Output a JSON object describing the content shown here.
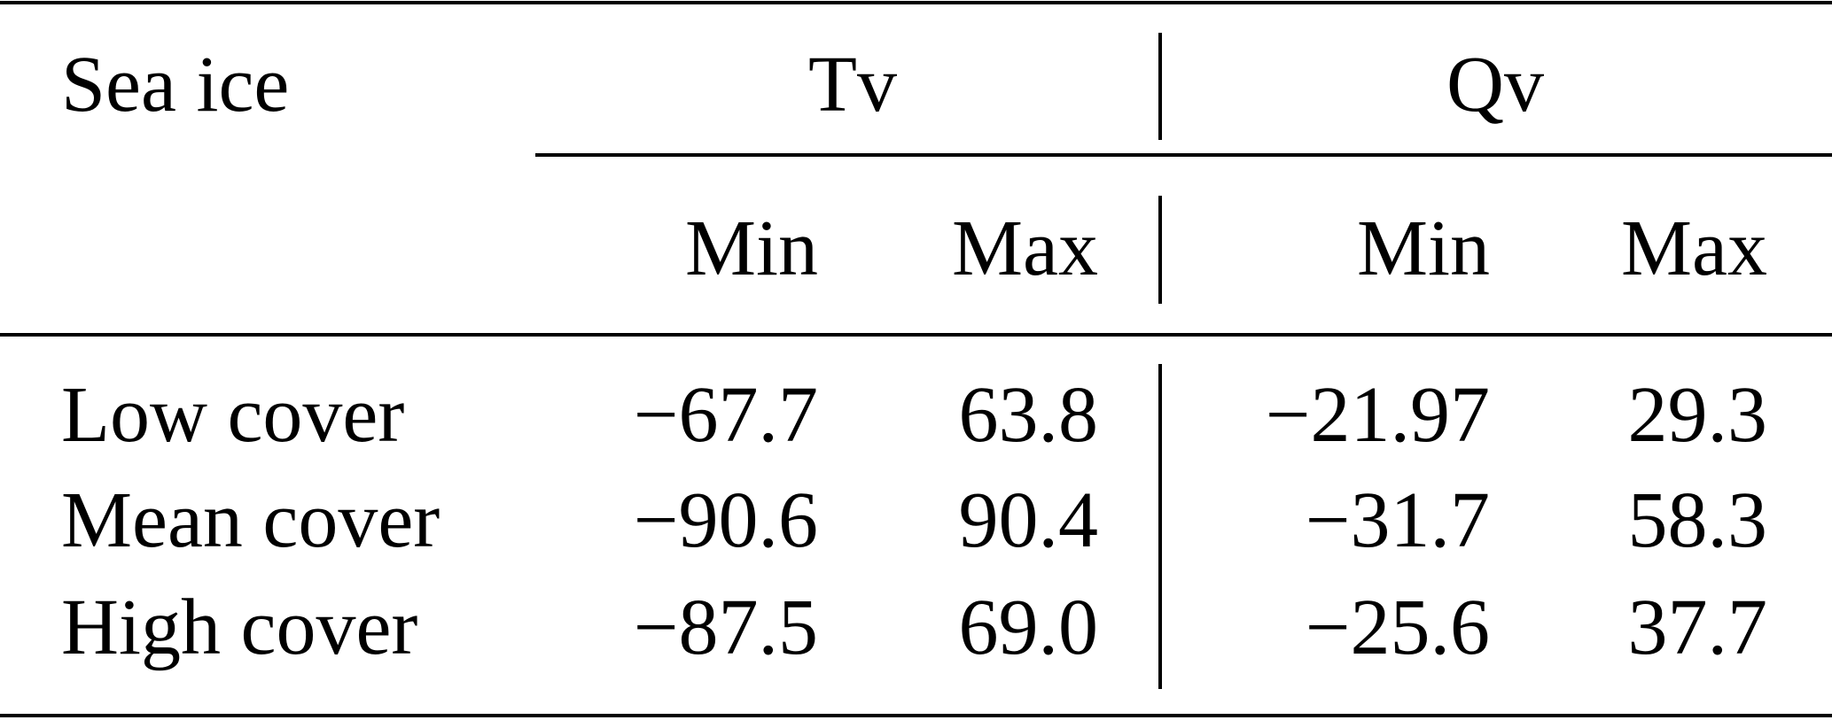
{
  "table": {
    "stub_header": "Sea ice",
    "groups": [
      "Tv",
      "Qv"
    ],
    "subheaders": [
      "Min",
      "Max",
      "Min",
      "Max"
    ],
    "rows": [
      [
        "Low cover",
        "−67.7",
        "63.8",
        "−21.97",
        "29.3"
      ],
      [
        "Mean cover",
        "−90.6",
        "90.4",
        "−31.7",
        "58.3"
      ],
      [
        "High cover",
        "−87.5",
        "69.0",
        "−25.6",
        "37.7"
      ]
    ]
  }
}
